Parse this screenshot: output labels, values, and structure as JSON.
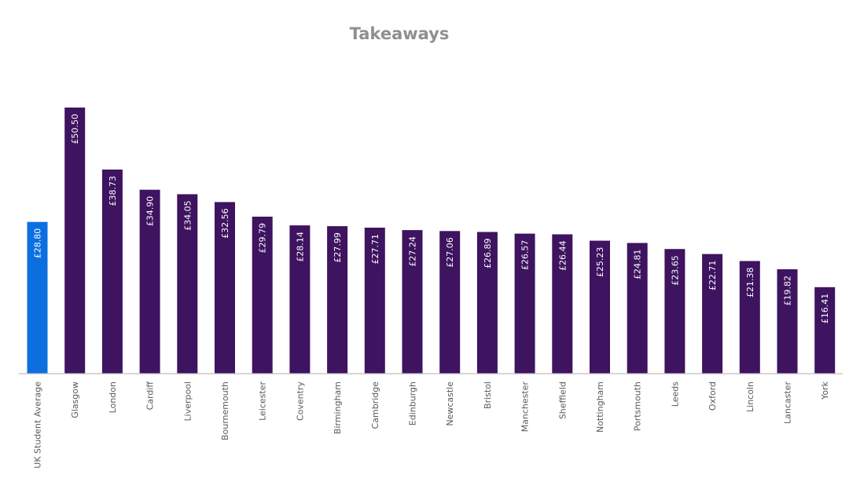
{
  "chart_data": {
    "type": "bar",
    "title": "Takeaways",
    "xlabel": "",
    "ylabel": "",
    "ylim": [
      0,
      50.5
    ],
    "grid": false,
    "legend": "none",
    "currency_prefix": "£",
    "categories": [
      "UK Student Average",
      "Glasgow",
      "London",
      "Cardiff",
      "Liverpool",
      "Bournemouth",
      "Leicester",
      "Coventry",
      "Birmingham",
      "Cambridge",
      "Edinburgh",
      "Newcastle",
      "Bristol",
      "Manchester",
      "Sheffield",
      "Nottingham",
      "Portsmouth",
      "Leeds",
      "Oxford",
      "Lincoln",
      "Lancaster",
      "York"
    ],
    "values": [
      28.8,
      50.5,
      38.73,
      34.9,
      34.05,
      32.56,
      29.79,
      28.14,
      27.99,
      27.71,
      27.24,
      27.06,
      26.89,
      26.57,
      26.44,
      25.23,
      24.81,
      23.65,
      22.71,
      21.38,
      19.82,
      16.41
    ],
    "data_labels": [
      "£28.80",
      "£50.50",
      "£38.73",
      "£34.90",
      "£34.05",
      "£32.56",
      "£29.79",
      "£28.14",
      "£27.99",
      "£27.71",
      "£27.24",
      "£27.06",
      "£26.89",
      "£26.57",
      "£26.44",
      "£25.23",
      "£24.81",
      "£23.65",
      "£22.71",
      "£21.38",
      "£19.82",
      "£16.41"
    ],
    "colors": {
      "highlight": "#0b6fe0",
      "bar": "#3e1360",
      "axis": "#bfbfbf",
      "title": "#8f8f8f",
      "category_text": "#595959",
      "value_text": "#ffffff"
    },
    "highlight_index": 0
  }
}
